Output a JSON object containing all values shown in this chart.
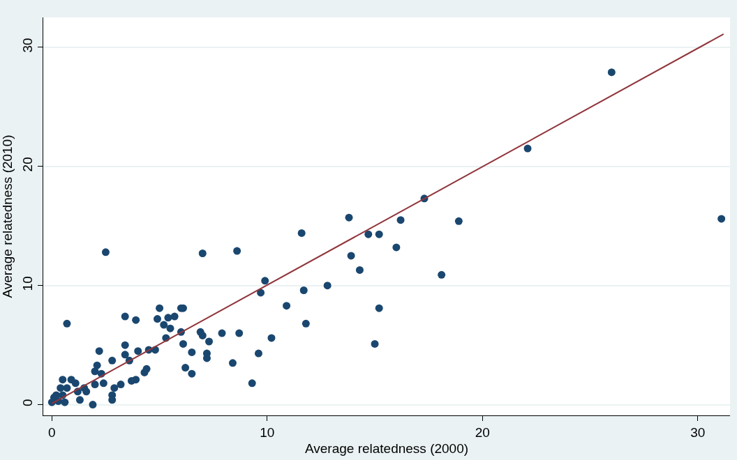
{
  "chart_data": {
    "type": "scatter",
    "xlabel": "Average relatedness (2000)",
    "ylabel": "Average relatedness (2010)",
    "xlim": [
      -0.4,
      31.5
    ],
    "ylim": [
      -0.9,
      32.5
    ],
    "xticks": [
      0,
      10,
      20,
      30
    ],
    "yticks": [
      0,
      10,
      20,
      30
    ],
    "grid": "y",
    "marker": "circle",
    "series": [
      {
        "color": "#1a476f",
        "x": [
          26.0,
          22.1,
          17.3,
          18.9,
          18.1,
          31.1,
          13.8,
          16.2,
          11.6,
          14.7,
          15.2,
          16.0,
          7.0,
          8.6,
          13.9,
          14.3,
          9.9,
          9.7,
          11.7,
          12.8,
          10.9,
          6.1,
          15.2,
          11.8,
          15.0,
          6.0,
          6.9,
          7.0,
          7.3,
          7.9,
          8.7,
          6.1,
          10.2,
          6.5,
          7.2,
          7.2,
          9.6,
          8.4,
          6.2,
          6.5,
          9.3,
          0.7,
          3.4,
          3.9,
          5.0,
          6.0,
          4.9,
          5.2,
          5.4,
          5.7,
          5.5,
          5.3,
          2.2,
          3.4,
          3.4,
          4.0,
          2.8,
          3.6,
          4.5,
          4.8,
          2.1,
          2.0,
          2.3,
          4.4,
          4.3,
          3.9,
          3.7,
          3.2,
          2.9,
          2.8,
          2.8,
          2.4,
          2.0,
          1.9,
          0.5,
          0.9,
          1.1,
          1.5,
          1.2,
          1.6,
          0.7,
          0.4,
          1.3,
          0.1,
          0.0,
          0.3,
          0.6,
          0.2,
          0.5,
          2.5
        ],
        "values": [
          27.9,
          21.5,
          17.3,
          15.4,
          10.9,
          15.6,
          15.7,
          15.5,
          14.4,
          14.3,
          14.3,
          13.2,
          12.7,
          12.9,
          12.5,
          11.3,
          10.4,
          9.4,
          9.6,
          10.0,
          8.3,
          8.1,
          8.1,
          6.8,
          5.1,
          6.1,
          6.1,
          5.8,
          5.3,
          6.0,
          6.0,
          5.1,
          5.6,
          4.4,
          4.3,
          3.9,
          4.3,
          3.5,
          3.1,
          2.6,
          1.8,
          6.8,
          7.4,
          7.1,
          8.1,
          8.1,
          7.2,
          6.7,
          7.3,
          7.4,
          6.4,
          5.6,
          4.5,
          5.0,
          4.2,
          4.5,
          3.7,
          3.7,
          4.6,
          4.6,
          3.3,
          2.8,
          2.6,
          3.0,
          2.7,
          2.1,
          2.0,
          1.7,
          1.4,
          0.8,
          0.4,
          1.8,
          1.7,
          0.0,
          2.1,
          2.1,
          1.8,
          1.4,
          1.1,
          1.1,
          1.4,
          1.4,
          0.4,
          0.6,
          0.2,
          0.3,
          0.2,
          0.8,
          0.8,
          12.8
        ]
      },
      {
        "type": "line",
        "marker": "none",
        "color": "#90353b",
        "x": [
          0,
          31.2
        ],
        "values": [
          0.1,
          31.1
        ]
      }
    ]
  }
}
